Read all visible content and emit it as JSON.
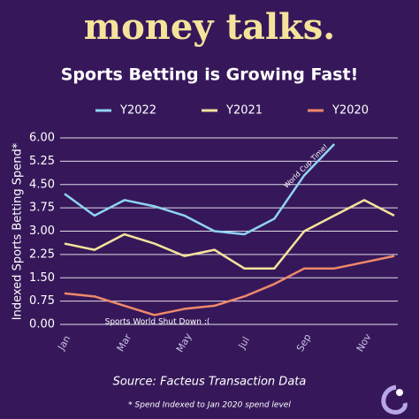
{
  "header": "money talks.",
  "chart_data": {
    "type": "line",
    "title": "Sports Betting is Growing Fast!",
    "y_label": "Indexed Sports Betting Spend*",
    "categories": [
      "Jan",
      null,
      "Mar",
      null,
      "May",
      null,
      "Jul",
      null,
      "Sep",
      null,
      "Nov",
      null
    ],
    "series": [
      {
        "name": "Y2022",
        "color": "#8fd4f2",
        "values": [
          4.2,
          3.5,
          4.0,
          3.8,
          3.5,
          3.0,
          2.9,
          3.4,
          4.8,
          5.8,
          null,
          null
        ]
      },
      {
        "name": "Y2021",
        "color": "#f6e39b",
        "values": [
          2.6,
          2.4,
          2.9,
          2.6,
          2.2,
          2.4,
          1.8,
          1.8,
          3.0,
          3.5,
          4.0,
          3.5
        ]
      },
      {
        "name": "Y2020",
        "color": "#f0896a",
        "values": [
          1.0,
          0.9,
          0.6,
          0.3,
          0.5,
          0.6,
          0.9,
          1.3,
          1.8,
          1.8,
          2.0,
          2.2
        ]
      }
    ],
    "ylim": [
      0,
      6
    ],
    "yticks": [
      {
        "value": 0,
        "label": "0.00"
      },
      {
        "value": 0.75,
        "label": "0.75"
      },
      {
        "value": 1.5,
        "label": "1.50"
      },
      {
        "value": 2.25,
        "label": "2.25"
      },
      {
        "value": 3,
        "label": "3.00"
      },
      {
        "value": 3.75,
        "label": "3.75"
      },
      {
        "value": 4.5,
        "label": "4.50"
      },
      {
        "value": 5.25,
        "label": "5.25"
      },
      {
        "value": 6,
        "label": "6.00"
      }
    ],
    "grid": true,
    "legend": "top",
    "annotations": [
      "World Cup Time!",
      "Sports World Shut Down :("
    ],
    "source": "Source:  Facteus Transaction Data",
    "footnote": "* Spend Indexed to Jan 2020 spend level"
  }
}
